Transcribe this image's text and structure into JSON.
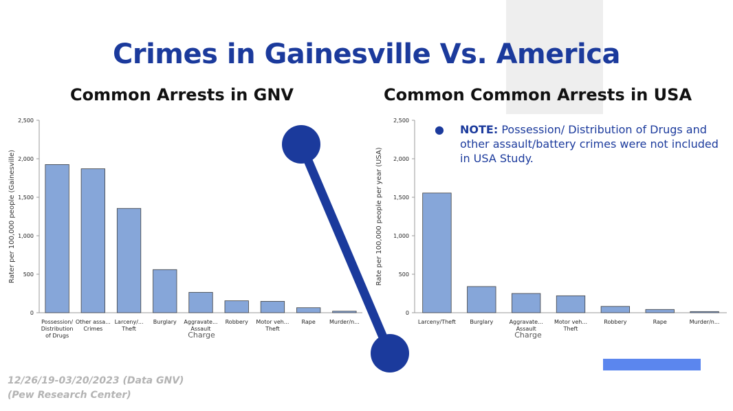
{
  "title": "Crimes in Gainesville Vs. America",
  "colors": {
    "title": "#1b3a9c",
    "bar": "#86a6d9",
    "bar_stroke": "#3f3f3f",
    "connector": "#1b3a9c",
    "accent_bar": "#5b86ee",
    "deco_gray": "#eeeeee",
    "footer": "#b3b3b3"
  },
  "note": {
    "bullet": "●",
    "label": "NOTE:",
    "text": " Possession/ Distribution of Drugs and other assault/battery crimes were not included in USA Study."
  },
  "footer": {
    "line1": "12/26/19-03/20/2023 (Data GNV)",
    "line2": "(Pew Research Center)"
  },
  "chart_data": [
    {
      "type": "bar",
      "title": "Common Arrests in GNV",
      "xlabel": "Charge",
      "ylabel": "Rater per 100,000 people (Gainesville)",
      "ylim": [
        0,
        2500
      ],
      "yticks": [
        "0",
        "500",
        "1,000",
        "1,500",
        "2,000",
        "2,500"
      ],
      "ytick_values": [
        0,
        500,
        1000,
        1500,
        2000,
        2500
      ],
      "categories": [
        [
          "Possession/",
          "Distribution",
          "of Drugs"
        ],
        [
          "Other assa...",
          "Crimes"
        ],
        [
          "Larceny/...",
          "Theft"
        ],
        [
          "Burglary"
        ],
        [
          "Aggravate...",
          "Assault"
        ],
        [
          "Robbery"
        ],
        [
          "Motor veh...",
          "Theft"
        ],
        [
          "Rape"
        ],
        [
          "Murder/n..."
        ]
      ],
      "values": [
        1925,
        1870,
        1355,
        560,
        265,
        155,
        148,
        65,
        20
      ],
      "grid": false,
      "legend": "none"
    },
    {
      "type": "bar",
      "title": "Common Common Arrests in USA",
      "xlabel": "Charge",
      "ylabel": "Rate per 100,000 people per year (USA)",
      "ylim": [
        0,
        2500
      ],
      "yticks": [
        "0",
        "500",
        "1,000",
        "1,500",
        "2,000",
        "2,500"
      ],
      "ytick_values": [
        0,
        500,
        1000,
        1500,
        2000,
        2500
      ],
      "categories": [
        [
          "Larceny/Theft"
        ],
        [
          "Burglary"
        ],
        [
          "Aggravate...",
          "Assault"
        ],
        [
          "Motor veh...",
          "Theft"
        ],
        [
          "Robbery"
        ],
        [
          "Rape"
        ],
        [
          "Murder/n..."
        ]
      ],
      "values": [
        1555,
        340,
        250,
        220,
        82,
        42,
        15
      ],
      "grid": false,
      "legend": "none"
    }
  ]
}
